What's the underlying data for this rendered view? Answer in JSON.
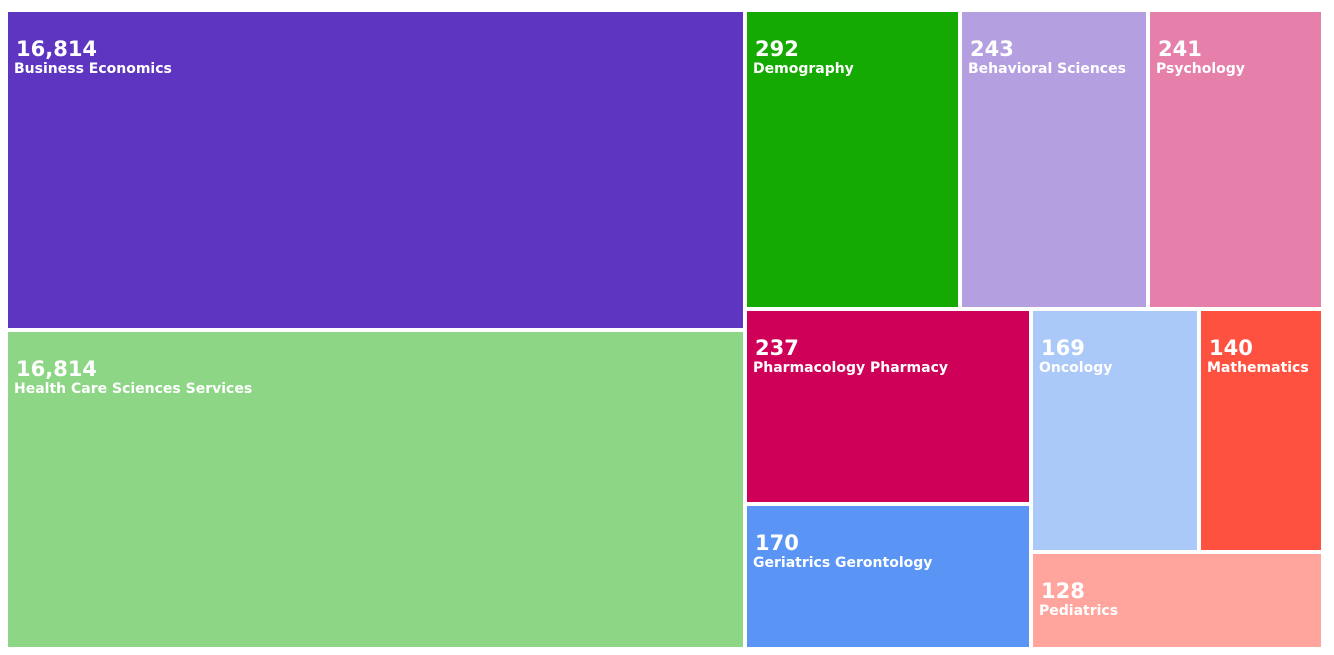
{
  "chart_data": {
    "type": "treemap",
    "categories": [
      "Business Economics",
      "Health Care Sciences Services",
      "Demography",
      "Behavioral Sciences",
      "Psychology",
      "Pharmacology Pharmacy",
      "Geriatrics Gerontology",
      "Oncology",
      "Mathematics",
      "Pediatrics"
    ],
    "values": [
      16814,
      16814,
      292,
      243,
      241,
      237,
      170,
      169,
      140,
      128
    ],
    "value_labels": [
      "16,814",
      "16,814",
      "292",
      "243",
      "241",
      "237",
      "170",
      "169",
      "140",
      "128"
    ],
    "colors": [
      "#5e35c1",
      "#8dd685",
      "#15aa02",
      "#b49fe0",
      "#e680ab",
      "#cf0057",
      "#5a94f4",
      "#aac8f8",
      "#ff5140",
      "#ffa59d"
    ]
  }
}
